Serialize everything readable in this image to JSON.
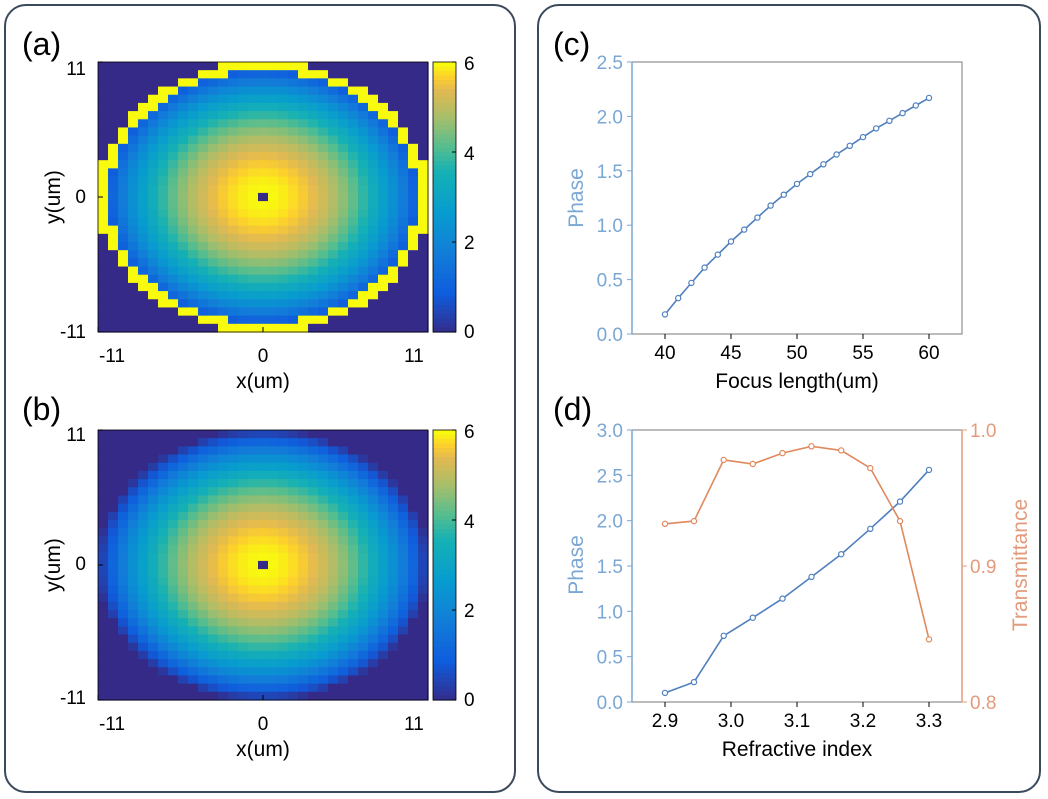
{
  "chart_data": [
    {
      "type": "heatmap",
      "panel_label": "(a)",
      "xlabel": "x(um)",
      "ylabel": "y(um)",
      "xticks": [
        "-11",
        "0",
        "11"
      ],
      "yticks": [
        "11",
        "0",
        "-11"
      ],
      "xlim": [
        -11,
        11
      ],
      "ylim": [
        -11,
        11
      ],
      "grid_size": 33,
      "colorbar": {
        "ticks": [
          "6",
          "4",
          "2",
          "0"
        ],
        "range": [
          0,
          6
        ]
      },
      "peak_value": 6,
      "lens_radius_um": 11,
      "edge_ring_value": 6,
      "center_value": 0
    },
    {
      "type": "heatmap",
      "panel_label": "(b)",
      "xlabel": "x(um)",
      "ylabel": "y(um)",
      "xticks": [
        "-11",
        "0",
        "11"
      ],
      "yticks": [
        "11",
        "0",
        "-11"
      ],
      "xlim": [
        -11,
        11
      ],
      "ylim": [
        -11,
        11
      ],
      "grid_size": 33,
      "colorbar": {
        "ticks": [
          "6",
          "4",
          "2",
          "0"
        ],
        "range": [
          0,
          6
        ]
      },
      "peak_value": 6,
      "lens_radius_um": 11,
      "edge_ring_value": null,
      "center_value": 0
    },
    {
      "type": "line",
      "panel_label": "(c)",
      "xlabel": "Focus length(um)",
      "ylabel": "Phase",
      "xlim": [
        37.5,
        62.5
      ],
      "ylim": [
        0,
        2.5
      ],
      "xticks": [
        "40",
        "45",
        "50",
        "55",
        "60"
      ],
      "yticks": [
        "2.5",
        "2.0",
        "1.5",
        "1.0",
        "0.5",
        "0.0"
      ],
      "series": [
        {
          "name": "Phase",
          "color": "#4f7fbf",
          "x": [
            40,
            41,
            42,
            43,
            44,
            45,
            46,
            47,
            48,
            49,
            50,
            51,
            52,
            53,
            54,
            55,
            56,
            57,
            58,
            59,
            60
          ],
          "values": [
            0.18,
            0.33,
            0.47,
            0.61,
            0.73,
            0.85,
            0.96,
            1.07,
            1.18,
            1.28,
            1.38,
            1.47,
            1.56,
            1.65,
            1.73,
            1.81,
            1.89,
            1.96,
            2.03,
            2.1,
            2.17
          ]
        }
      ]
    },
    {
      "type": "line",
      "panel_label": "(d)",
      "xlabel": "Refractive index",
      "ylabel": "Phase",
      "ylabel_right": "Transmittance",
      "xlim": [
        2.85,
        3.35
      ],
      "ylim": [
        0,
        3.0
      ],
      "ylim_right": [
        0.8,
        1.0
      ],
      "xticks": [
        "2.9",
        "3.0",
        "3.1",
        "3.2",
        "3.3"
      ],
      "yticks": [
        "3.0",
        "2.5",
        "2.0",
        "1.5",
        "1.0",
        "0.5",
        "0.0"
      ],
      "yticks_right": [
        "1.0",
        "0.9",
        "0.8"
      ],
      "series": [
        {
          "name": "Phase",
          "axis": "left",
          "color": "#4f7fbf",
          "x": [
            2.9,
            2.944,
            2.989,
            3.033,
            3.078,
            3.122,
            3.167,
            3.211,
            3.256,
            3.3
          ],
          "values": [
            0.1,
            0.22,
            0.73,
            0.93,
            1.14,
            1.38,
            1.63,
            1.91,
            2.21,
            2.56
          ]
        },
        {
          "name": "Transmittance",
          "axis": "right",
          "color": "#e0895e",
          "x": [
            2.9,
            2.944,
            2.989,
            3.033,
            3.078,
            3.122,
            3.167,
            3.211,
            3.256,
            3.3
          ],
          "values": [
            0.931,
            0.933,
            0.978,
            0.975,
            0.983,
            0.988,
            0.985,
            0.972,
            0.933,
            0.846
          ]
        }
      ]
    }
  ]
}
